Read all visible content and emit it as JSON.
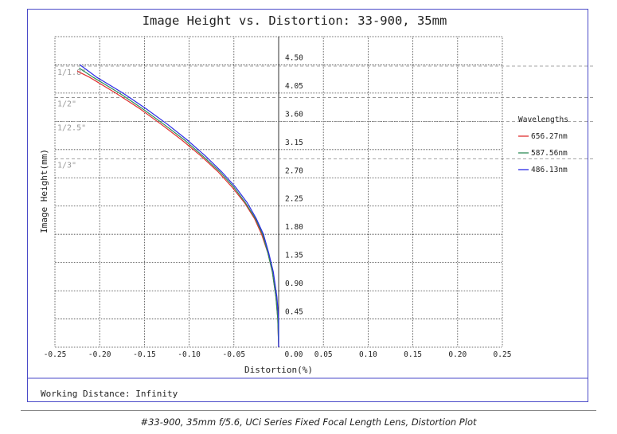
{
  "chart_data": {
    "type": "line",
    "title": "Image Height vs. Distortion: 33-900, 35mm",
    "xlabel": "Distortion(%)",
    "ylabel": "Image Height(mm)",
    "xlim": [
      -0.25,
      0.25
    ],
    "ylim": [
      0,
      4.95
    ],
    "x_ticks": [
      "-0.25",
      "-0.20",
      "-0.15",
      "-0.10",
      "-0.05",
      "0.00",
      "0.05",
      "0.10",
      "0.15",
      "0.20",
      "0.25"
    ],
    "y_ticks": [
      "0.45",
      "0.90",
      "1.35",
      "1.80",
      "2.25",
      "2.70",
      "3.15",
      "3.60",
      "4.05",
      "4.50"
    ],
    "grid": true,
    "legend_title": "Wavelengths",
    "legend_position": "right",
    "series": [
      {
        "name": "656.27nm",
        "color": "#e03030",
        "x": [
          0.0,
          -0.001,
          -0.003,
          -0.007,
          -0.012,
          -0.019,
          -0.027,
          -0.038,
          -0.052,
          -0.068,
          -0.087,
          -0.108,
          -0.131,
          -0.155,
          -0.182,
          -0.211,
          -0.225
        ],
        "y": [
          0.0,
          0.45,
          0.8,
          1.2,
          1.5,
          1.8,
          2.05,
          2.3,
          2.55,
          2.8,
          3.05,
          3.3,
          3.55,
          3.8,
          4.05,
          4.3,
          4.4
        ]
      },
      {
        "name": "587.56nm",
        "color": "#2e8b57",
        "x": [
          0.0,
          -0.001,
          -0.003,
          -0.007,
          -0.012,
          -0.018,
          -0.026,
          -0.037,
          -0.05,
          -0.066,
          -0.085,
          -0.105,
          -0.128,
          -0.152,
          -0.178,
          -0.207,
          -0.223
        ],
        "y": [
          0.0,
          0.45,
          0.8,
          1.2,
          1.5,
          1.8,
          2.05,
          2.3,
          2.55,
          2.8,
          3.05,
          3.3,
          3.55,
          3.8,
          4.05,
          4.3,
          4.45
        ]
      },
      {
        "name": "486.13nm",
        "color": "#2a2ae6",
        "x": [
          0.0,
          0.0,
          -0.002,
          -0.006,
          -0.011,
          -0.017,
          -0.025,
          -0.035,
          -0.048,
          -0.064,
          -0.082,
          -0.102,
          -0.124,
          -0.148,
          -0.174,
          -0.203,
          -0.222
        ],
        "y": [
          0.0,
          0.45,
          0.8,
          1.2,
          1.5,
          1.8,
          2.05,
          2.3,
          2.55,
          2.8,
          3.05,
          3.3,
          3.55,
          3.8,
          4.05,
          4.3,
          4.5
        ]
      }
    ],
    "sensor_formats": [
      {
        "label": "1/1.8\"",
        "y": 4.48
      },
      {
        "label": "1/2\"",
        "y": 3.98
      },
      {
        "label": "1/2.5\"",
        "y": 3.6
      },
      {
        "label": "1/3\"",
        "y": 3.0
      }
    ]
  },
  "footer": {
    "working_distance": "Working Distance: Infinity"
  },
  "caption": "#33-900, 35mm f/5.6, UCi Series Fixed Focal Length Lens, Distortion Plot"
}
